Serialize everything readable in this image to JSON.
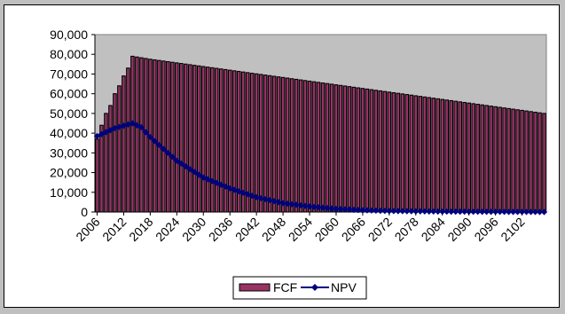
{
  "chart_data": {
    "type": "bar",
    "title": "",
    "xlabel": "",
    "ylabel": "",
    "ylim": [
      0,
      90000
    ],
    "y_ticks": [
      "0",
      "10,000",
      "20,000",
      "30,000",
      "40,000",
      "50,000",
      "60,000",
      "70,000",
      "80,000",
      "90,000"
    ],
    "x_ticks": [
      "2006",
      "2012",
      "2018",
      "2024",
      "2030",
      "2036",
      "2042",
      "2048",
      "2054",
      "2060",
      "2066",
      "2072",
      "2078",
      "2084",
      "2090",
      "2096",
      "2102"
    ],
    "x_range": [
      2006,
      2107
    ],
    "grid": false,
    "plot_background": "#c0c0c0",
    "legend_position": "bottom",
    "series": [
      {
        "name": "FCF",
        "type": "bar",
        "color": "#993366",
        "edge_color": "#000000",
        "keypoints": [
          [
            2006,
            37000
          ],
          [
            2007,
            44000
          ],
          [
            2008,
            50000
          ],
          [
            2009,
            54000
          ],
          [
            2010,
            60000
          ],
          [
            2011,
            64000
          ],
          [
            2012,
            69000
          ],
          [
            2013,
            73000
          ],
          [
            2014,
            79000
          ],
          [
            2018,
            77500
          ],
          [
            2107,
            50000
          ]
        ]
      },
      {
        "name": "NPV",
        "type": "line",
        "color": "#000080",
        "marker": "diamond",
        "keypoints": [
          [
            2006,
            38500
          ],
          [
            2010,
            42500
          ],
          [
            2014,
            45000
          ],
          [
            2016,
            43000
          ],
          [
            2018,
            38000
          ],
          [
            2021,
            32000
          ],
          [
            2024,
            26000
          ],
          [
            2030,
            17500
          ],
          [
            2036,
            12000
          ],
          [
            2042,
            7500
          ],
          [
            2048,
            4500
          ],
          [
            2054,
            2800
          ],
          [
            2060,
            1600
          ],
          [
            2066,
            900
          ],
          [
            2072,
            500
          ],
          [
            2084,
            200
          ],
          [
            2107,
            0
          ]
        ]
      }
    ]
  }
}
